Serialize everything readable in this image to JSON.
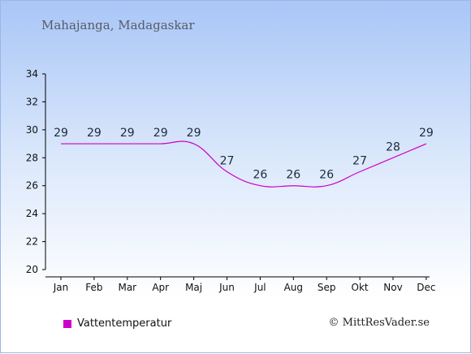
{
  "title": "Mahajanga, Madagaskar",
  "credit": "© MittResVader.se",
  "legend": {
    "label": "Vattentemperatur",
    "color": "#cc00cc"
  },
  "chart_data": {
    "type": "line",
    "title": "Mahajanga, Madagaskar",
    "xlabel": "",
    "ylabel": "",
    "categories": [
      "Jan",
      "Feb",
      "Mar",
      "Apr",
      "Maj",
      "Jun",
      "Jul",
      "Aug",
      "Sep",
      "Okt",
      "Nov",
      "Dec"
    ],
    "series": [
      {
        "name": "Vattentemperatur",
        "color": "#cc00cc",
        "values": [
          29,
          29,
          29,
          29,
          29,
          27,
          26,
          26,
          26,
          27,
          28,
          29
        ]
      }
    ],
    "ylim": [
      20,
      34
    ],
    "yticks": [
      20,
      22,
      24,
      26,
      28,
      30,
      32,
      34
    ],
    "grid": false,
    "legend_position": "bottom-left"
  }
}
